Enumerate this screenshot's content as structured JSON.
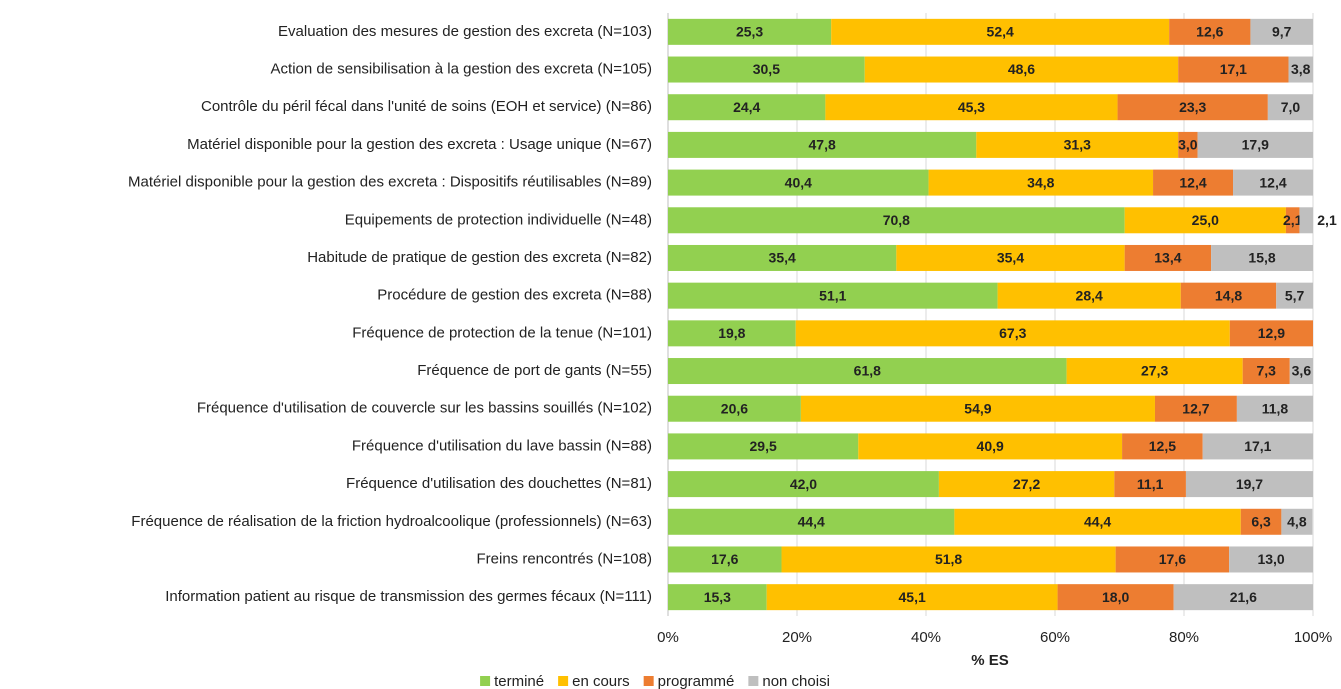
{
  "chart_data": {
    "type": "stacked-bar-horizontal",
    "x_label": "% ES",
    "categories": [
      "Evaluation des mesures de gestion des excreta (N=103)",
      "Action de sensibilisation à la gestion des excreta (N=105)",
      "Contrôle du péril fécal dans l'unité de soins (EOH et service) (N=86)",
      "Matériel disponible pour la gestion des excreta : Usage unique (N=67)",
      "Matériel disponible pour la gestion des excreta : Dispositifs réutilisables (N=89)",
      "Equipements de protection individuelle (N=48)",
      "Habitude de pratique de gestion des excreta (N=82)",
      "Procédure de gestion des excreta (N=88)",
      "Fréquence de protection de la tenue (N=101)",
      "Fréquence de port de gants (N=55)",
      "Fréquence d'utilisation de couvercle sur les bassins souillés (N=102)",
      "Fréquence d'utilisation du lave bassin (N=88)",
      "Fréquence d'utilisation des douchettes (N=81)",
      "Fréquence de réalisation de la friction hydroalcoolique (professionnels) (N=63)",
      "Freins rencontrés (N=108)",
      "Information patient au risque de transmission des germes fécaux (N=111)"
    ],
    "series": [
      {
        "name": "terminé",
        "color": "#92d050",
        "values": [
          25.3,
          30.5,
          24.4,
          47.8,
          40.4,
          70.8,
          35.4,
          51.1,
          19.8,
          61.8,
          20.6,
          29.5,
          42.0,
          44.4,
          17.6,
          15.3
        ],
        "value_labels": [
          "25,3",
          "30,5",
          "24,4",
          "47,8",
          "40,4",
          "70,8",
          "35,4",
          "51,1",
          "19,8",
          "61,8",
          "20,6",
          "29,5",
          "42,0",
          "44,4",
          "17,6",
          "15,3"
        ]
      },
      {
        "name": "en cours",
        "color": "#ffc000",
        "values": [
          52.4,
          48.6,
          45.3,
          31.3,
          34.8,
          25.0,
          35.4,
          28.4,
          67.3,
          27.3,
          54.9,
          40.9,
          27.2,
          44.4,
          51.8,
          45.1
        ],
        "value_labels": [
          "52,4",
          "48,6",
          "45,3",
          "31,3",
          "34,8",
          "25,0",
          "35,4",
          "28,4",
          "67,3",
          "27,3",
          "54,9",
          "40,9",
          "27,2",
          "44,4",
          "51,8",
          "45,1"
        ]
      },
      {
        "name": "programmé",
        "color": "#ed7d31",
        "values": [
          12.6,
          17.1,
          23.3,
          3.0,
          12.4,
          2.1,
          13.4,
          14.8,
          12.9,
          7.3,
          12.7,
          12.5,
          11.1,
          6.3,
          17.6,
          18.0
        ],
        "value_labels": [
          "12,6",
          "17,1",
          "23,3",
          "3,0",
          "12,4",
          "2,1",
          "13,4",
          "14,8",
          "12,9",
          "7,3",
          "12,7",
          "12,5",
          "11,1",
          "6,3",
          "17,6",
          "18,0"
        ]
      },
      {
        "name": "non choisi",
        "color": "#bfbfbf",
        "values": [
          9.7,
          3.8,
          7.0,
          17.9,
          12.4,
          2.1,
          15.8,
          5.7,
          null,
          3.6,
          11.8,
          17.1,
          19.7,
          4.8,
          13.0,
          21.6
        ],
        "value_labels": [
          "9,7",
          "3,8",
          "7,0",
          "17,9",
          "12,4",
          "2,1",
          "15,8",
          "5,7",
          null,
          "3,6",
          "11,8",
          "17,1",
          "19,7",
          "4,8",
          "13,0",
          "21,6"
        ]
      }
    ],
    "xlim": [
      0,
      100
    ],
    "xticks": [
      {
        "value": 0,
        "label": "0%"
      },
      {
        "value": 20,
        "label": "20%"
      },
      {
        "value": 40,
        "label": "40%"
      },
      {
        "value": 60,
        "label": "60%"
      },
      {
        "value": 80,
        "label": "80%"
      },
      {
        "value": 100,
        "label": "100%"
      }
    ],
    "grid": true,
    "legend": "bottom"
  }
}
